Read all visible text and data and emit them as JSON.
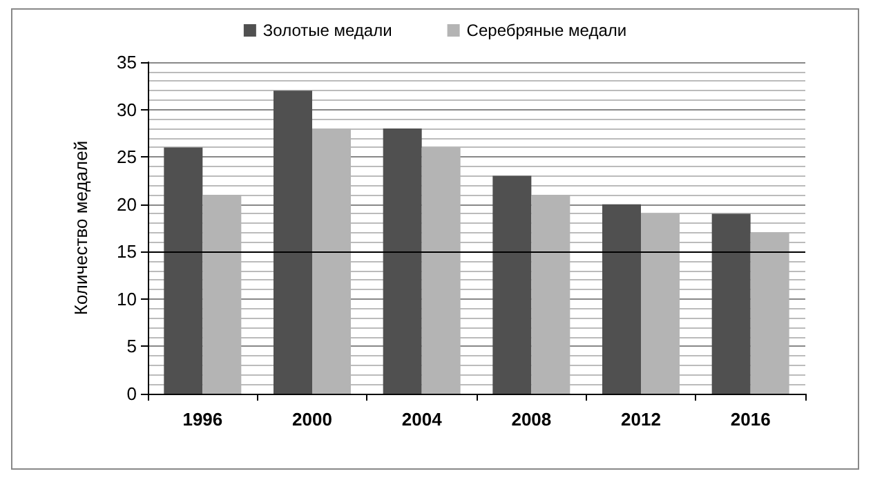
{
  "chart_data": {
    "type": "bar",
    "ylabel": "Количество медалей",
    "categories": [
      "1996",
      "2000",
      "2004",
      "2008",
      "2012",
      "2016"
    ],
    "series": [
      {
        "name": "Золотые медали",
        "color": "#505050",
        "values": [
          26,
          32,
          28,
          23,
          20,
          19
        ]
      },
      {
        "name": "Серебряные медали",
        "color": "#b4b4b4",
        "values": [
          21,
          28,
          26,
          21,
          19,
          17
        ]
      }
    ],
    "ylim": [
      0,
      35
    ],
    "yticks": [
      0,
      5,
      10,
      15,
      20,
      25,
      30,
      35
    ],
    "grid": "y",
    "legend": "top",
    "ref_lines": [
      {
        "axis": "y",
        "value": 15,
        "color": "#000000"
      }
    ]
  }
}
